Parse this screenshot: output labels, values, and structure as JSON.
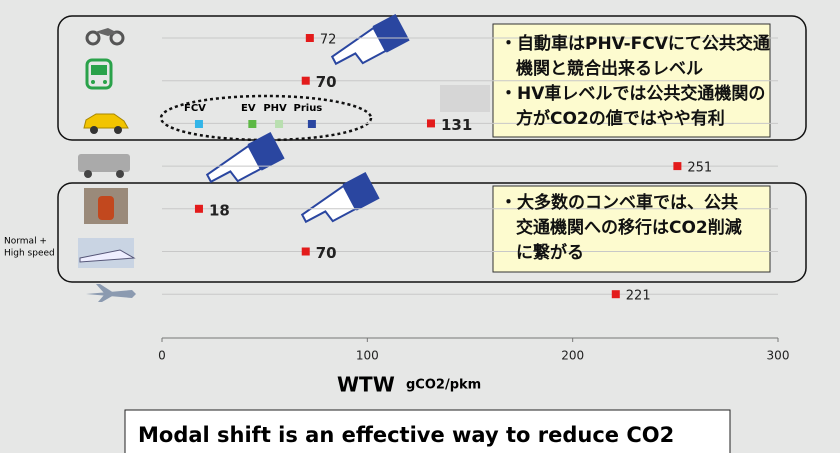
{
  "chart_data": {
    "type": "dot",
    "categories": [
      null,
      null,
      null,
      null,
      null,
      null,
      null
    ],
    "values": [
      72,
      70,
      131,
      251,
      18,
      70,
      221
    ],
    "color": "#e31b1b",
    "row_note": [
      "Normal +",
      "High speed"
    ],
    "car_variants": {
      "names": [
        "FCV",
        "EV",
        "PHV",
        "Prius"
      ],
      "colors": [
        "#33b5e8",
        "#5db845",
        "#b9dfb0",
        "#2a46a0"
      ],
      "values": [
        18,
        44,
        57,
        73
      ]
    },
    "xlim": [
      0,
      300
    ],
    "xticks": [
      0,
      100,
      200,
      300
    ],
    "grid": true,
    "xlabel": "WTW",
    "xunit": "gCO2/pkm",
    "callouts": [
      [
        "・自動車はPHV-FCVにて公共交通",
        "機関と競合出来るレベル",
        "・HV車レベルでは公共交通機関の",
        "方がCO2の値ではやや有利"
      ],
      [
        "・大多数のコンベ車では、公共",
        "交通機関への移行はCO2削減",
        "に繋がる"
      ]
    ],
    "conclusion": "Modal shift is an effective way to reduce CO2"
  }
}
